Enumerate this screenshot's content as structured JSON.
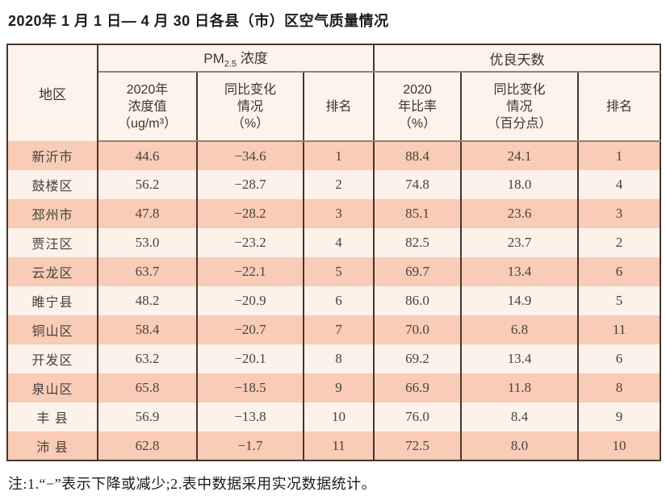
{
  "page": {
    "title": "2020年 1 月 1 日— 4 月 30 日各县（市）区空气质量情况",
    "note": "注:1.“−”表示下降或减少;2.表中数据采用实况数据统计。"
  },
  "colors": {
    "row_odd": "#f8ccb6",
    "row_even": "#fdf2ea",
    "header_bg": "#fcf4ea",
    "border": "#4a342c"
  },
  "table": {
    "headers": {
      "region": "地区",
      "pm_group_base": "PM",
      "pm_group_sub": "2.5",
      "pm_group_rest": " 浓度",
      "days_group": "优良天数",
      "pm_value_lines": [
        "2020年",
        "浓度值",
        "（ug/m³）"
      ],
      "pm_change_lines": [
        "同比变化",
        "情况",
        "（%）"
      ],
      "pm_rank": "排名",
      "days_ratio_lines": [
        "2020",
        "年比率",
        "（%）"
      ],
      "days_change_lines": [
        "同比变化",
        "情况",
        "（百分点）"
      ],
      "days_rank": "排名"
    },
    "rows": [
      {
        "region": "新沂市",
        "pm_value": "44.6",
        "pm_change": "−34.6",
        "pm_rank": "1",
        "days_ratio": "88.4",
        "days_change": "24.1",
        "days_rank": "1"
      },
      {
        "region": "鼓楼区",
        "pm_value": "56.2",
        "pm_change": "−28.7",
        "pm_rank": "2",
        "days_ratio": "74.8",
        "days_change": "18.0",
        "days_rank": "4"
      },
      {
        "region": "邳州市",
        "pm_value": "47.8",
        "pm_change": "−28.2",
        "pm_rank": "3",
        "days_ratio": "85.1",
        "days_change": "23.6",
        "days_rank": "3"
      },
      {
        "region": "贾汪区",
        "pm_value": "53.0",
        "pm_change": "−23.2",
        "pm_rank": "4",
        "days_ratio": "82.5",
        "days_change": "23.7",
        "days_rank": "2"
      },
      {
        "region": "云龙区",
        "pm_value": "63.7",
        "pm_change": "−22.1",
        "pm_rank": "5",
        "days_ratio": "69.7",
        "days_change": "13.4",
        "days_rank": "6"
      },
      {
        "region": "睢宁县",
        "pm_value": "48.2",
        "pm_change": "−20.9",
        "pm_rank": "6",
        "days_ratio": "86.0",
        "days_change": "14.9",
        "days_rank": "5"
      },
      {
        "region": "铜山区",
        "pm_value": "58.4",
        "pm_change": "−20.7",
        "pm_rank": "7",
        "days_ratio": "70.0",
        "days_change": "6.8",
        "days_rank": "11"
      },
      {
        "region": "开发区",
        "pm_value": "63.2",
        "pm_change": "−20.1",
        "pm_rank": "8",
        "days_ratio": "69.2",
        "days_change": "13.4",
        "days_rank": "6"
      },
      {
        "region": "泉山区",
        "pm_value": "65.8",
        "pm_change": "−18.5",
        "pm_rank": "9",
        "days_ratio": "66.9",
        "days_change": "11.8",
        "days_rank": "8"
      },
      {
        "region": "丰 县",
        "pm_value": "56.9",
        "pm_change": "−13.8",
        "pm_rank": "10",
        "days_ratio": "76.0",
        "days_change": "8.4",
        "days_rank": "9"
      },
      {
        "region": "沛 县",
        "pm_value": "62.8",
        "pm_change": "−1.7",
        "pm_rank": "11",
        "days_ratio": "72.5",
        "days_change": "8.0",
        "days_rank": "10"
      }
    ]
  }
}
